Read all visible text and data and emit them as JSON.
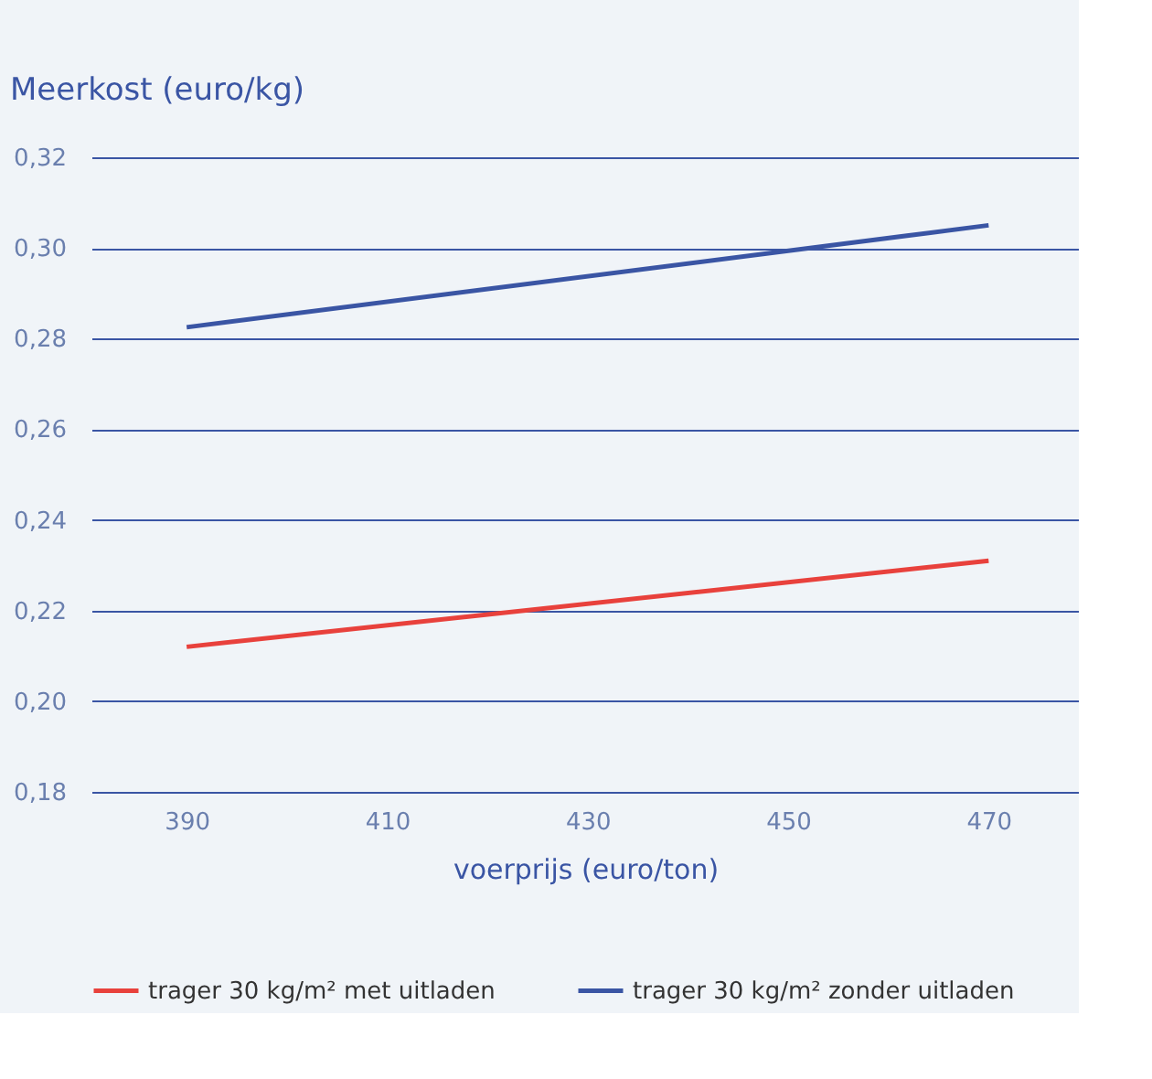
{
  "chart_data": {
    "type": "line",
    "ylabel": "Meerkost (euro/kg)",
    "xlabel": "voerprijs (euro/ton)",
    "x": [
      390,
      470
    ],
    "series": [
      {
        "name": "trager 30 kg/m² met uitladen",
        "color": "#e8413c",
        "values": [
          0.212,
          0.231
        ]
      },
      {
        "name": "trager 30 kg/m² zonder uitladen",
        "color": "#3a55a4",
        "values": [
          0.2825,
          0.305
        ]
      }
    ],
    "xlim": [
      380.5,
      479
    ],
    "xticks": [
      390,
      410,
      430,
      450,
      470
    ],
    "ylim": [
      0.18,
      0.32
    ],
    "yticks": [
      {
        "value": 0.18,
        "label": "0,18"
      },
      {
        "value": 0.2,
        "label": "0,20"
      },
      {
        "value": 0.22,
        "label": "0,22"
      },
      {
        "value": 0.24,
        "label": "0,24"
      },
      {
        "value": 0.26,
        "label": "0,26"
      },
      {
        "value": 0.28,
        "label": "0,28"
      },
      {
        "value": 0.3,
        "label": "0,30"
      },
      {
        "value": 0.32,
        "label": "0,32"
      }
    ],
    "grid": "y",
    "legend": "bottom",
    "marker": "none",
    "line_style": "solid"
  }
}
